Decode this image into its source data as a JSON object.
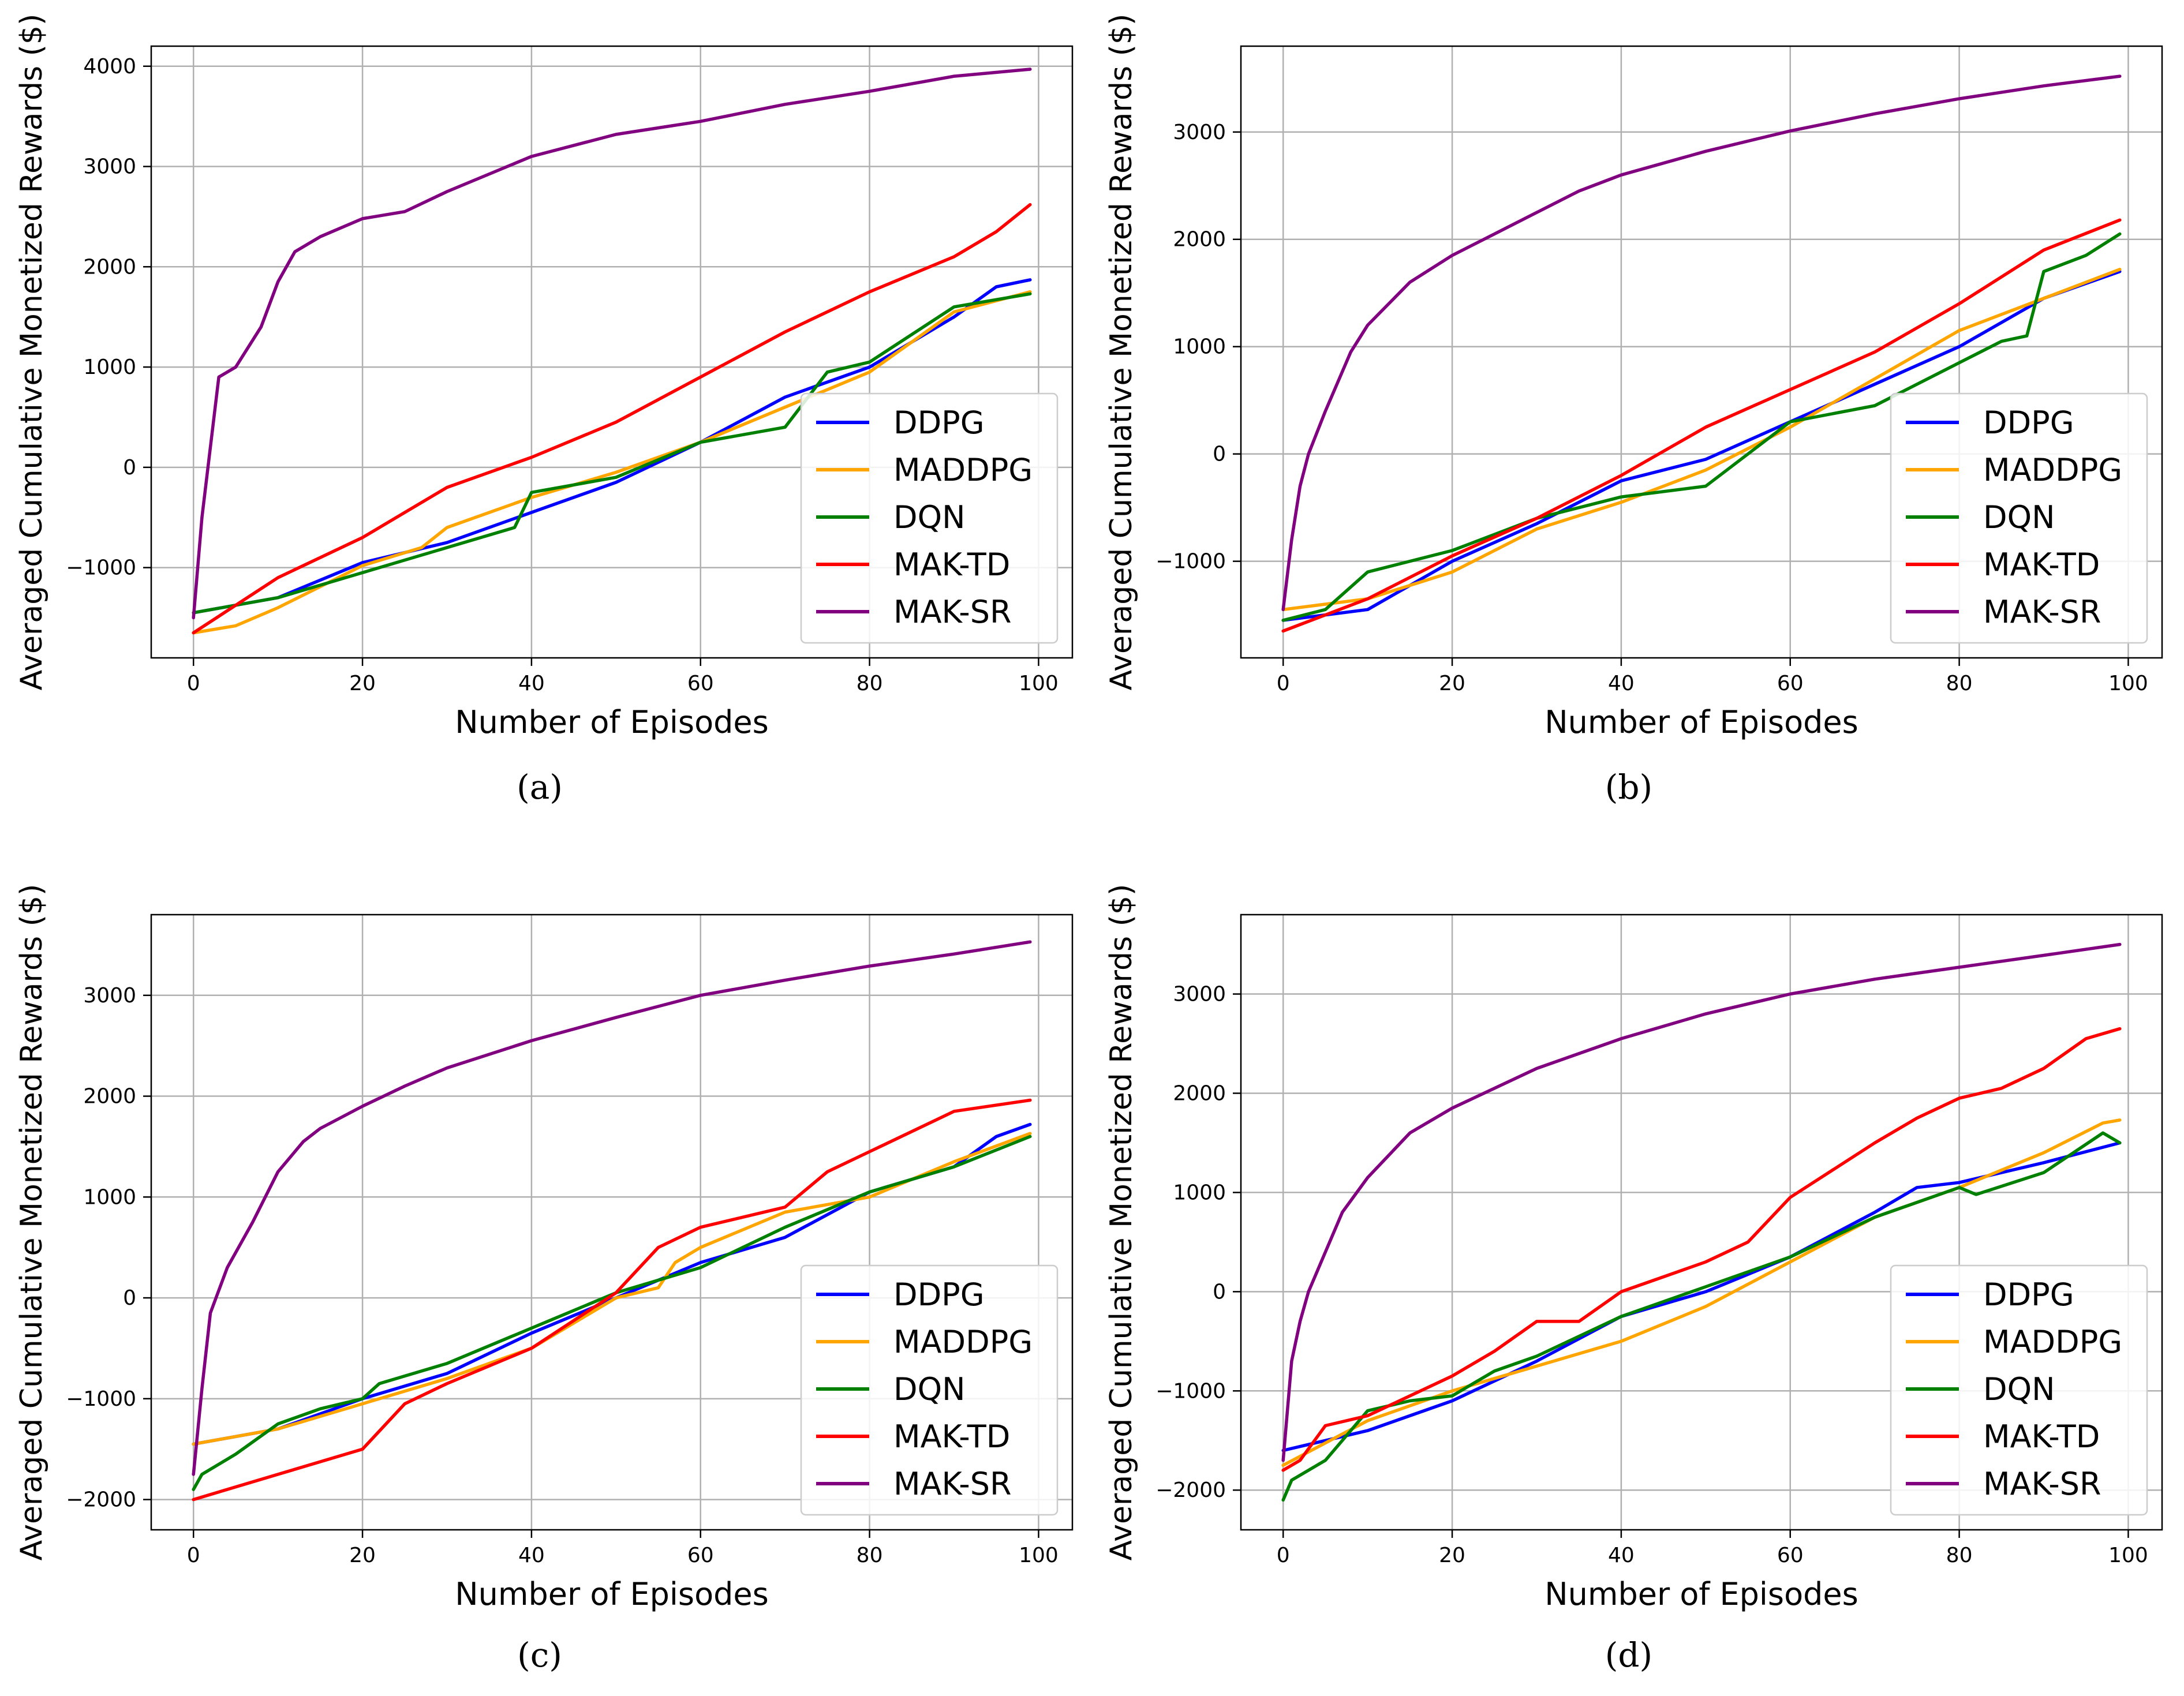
{
  "x_axis_label": "Number of Episodes",
  "y_axis_label": "Averaged Cumulative Monetized Rewards ($)",
  "colors": {
    "DDPG": "#0000ff",
    "MADDPG": "#ffa500",
    "DQN": "#008000",
    "MAK-TD": "#ff0000",
    "MAK-SR": "#800080",
    "grid": "#b0b0b0"
  },
  "chart_data": [
    {
      "type": "line",
      "id": "a",
      "caption": "(a)",
      "xlabel": "Number of Episodes",
      "ylabel": "Averaged Cumulative Monetized Rewards ($)",
      "xlim": [
        -5,
        104
      ],
      "ylim": [
        -1900,
        4200
      ],
      "xticks": [
        0,
        20,
        40,
        60,
        80,
        100
      ],
      "yticks": [
        -1000,
        0,
        1000,
        2000,
        3000,
        4000
      ],
      "grid": true,
      "legend": "bottom-right",
      "series": [
        {
          "name": "DDPG",
          "x": [
            0,
            10,
            20,
            30,
            40,
            50,
            60,
            70,
            80,
            90,
            95,
            99
          ],
          "y": [
            -1450,
            -1300,
            -950,
            -750,
            -450,
            -150,
            250,
            700,
            1000,
            1500,
            1800,
            1870
          ]
        },
        {
          "name": "MADDPG",
          "x": [
            0,
            5,
            10,
            20,
            27,
            30,
            40,
            50,
            60,
            70,
            80,
            90,
            99
          ],
          "y": [
            -1650,
            -1580,
            -1400,
            -980,
            -800,
            -600,
            -300,
            -50,
            250,
            600,
            950,
            1550,
            1750
          ]
        },
        {
          "name": "DQN",
          "x": [
            0,
            10,
            18,
            30,
            38,
            40,
            50,
            60,
            70,
            75,
            80,
            90,
            99
          ],
          "y": [
            -1450,
            -1300,
            -1100,
            -800,
            -600,
            -250,
            -100,
            250,
            400,
            950,
            1050,
            1600,
            1730
          ]
        },
        {
          "name": "MAK-TD",
          "x": [
            0,
            10,
            20,
            30,
            40,
            50,
            60,
            70,
            80,
            90,
            95,
            99
          ],
          "y": [
            -1650,
            -1100,
            -700,
            -200,
            100,
            450,
            900,
            1350,
            1750,
            2100,
            2350,
            2620
          ]
        },
        {
          "name": "MAK-SR",
          "x": [
            0,
            1,
            3,
            5,
            8,
            10,
            12,
            15,
            20,
            25,
            30,
            40,
            50,
            60,
            70,
            80,
            90,
            99
          ],
          "y": [
            -1500,
            -500,
            900,
            1000,
            1400,
            1850,
            2150,
            2300,
            2480,
            2550,
            2750,
            3100,
            3320,
            3450,
            3620,
            3750,
            3900,
            3970
          ]
        }
      ]
    },
    {
      "type": "line",
      "id": "b",
      "caption": "(b)",
      "xlabel": "Number of Episodes",
      "ylabel": "Averaged Cumulative Monetized Rewards ($)",
      "xlim": [
        -5,
        104
      ],
      "ylim": [
        -1900,
        3800
      ],
      "xticks": [
        0,
        20,
        40,
        60,
        80,
        100
      ],
      "yticks": [
        -1000,
        0,
        1000,
        2000,
        3000
      ],
      "grid": true,
      "legend": "bottom-right",
      "series": [
        {
          "name": "DDPG",
          "x": [
            0,
            10,
            20,
            30,
            40,
            50,
            60,
            70,
            80,
            90,
            99
          ],
          "y": [
            -1550,
            -1450,
            -1000,
            -650,
            -250,
            -50,
            300,
            650,
            1000,
            1450,
            1700
          ]
        },
        {
          "name": "MADDPG",
          "x": [
            0,
            10,
            20,
            30,
            40,
            50,
            60,
            70,
            80,
            90,
            99
          ],
          "y": [
            -1450,
            -1350,
            -1100,
            -700,
            -450,
            -150,
            250,
            700,
            1150,
            1450,
            1720
          ]
        },
        {
          "name": "DQN",
          "x": [
            0,
            5,
            10,
            20,
            30,
            40,
            50,
            60,
            70,
            80,
            85,
            88,
            90,
            95,
            99
          ],
          "y": [
            -1550,
            -1450,
            -1100,
            -900,
            -600,
            -400,
            -300,
            300,
            450,
            850,
            1050,
            1100,
            1700,
            1850,
            2050
          ]
        },
        {
          "name": "MAK-TD",
          "x": [
            0,
            10,
            20,
            30,
            40,
            50,
            60,
            70,
            80,
            90,
            99
          ],
          "y": [
            -1650,
            -1350,
            -950,
            -600,
            -200,
            250,
            600,
            950,
            1400,
            1900,
            2180
          ]
        },
        {
          "name": "MAK-SR",
          "x": [
            0,
            1,
            2,
            3,
            5,
            8,
            10,
            15,
            20,
            25,
            30,
            35,
            40,
            50,
            60,
            70,
            80,
            90,
            99
          ],
          "y": [
            -1450,
            -800,
            -300,
            0,
            400,
            950,
            1200,
            1600,
            1850,
            2050,
            2250,
            2450,
            2600,
            2820,
            3010,
            3170,
            3310,
            3430,
            3520
          ]
        }
      ]
    },
    {
      "type": "line",
      "id": "c",
      "caption": "(c)",
      "xlabel": "Number of Episodes",
      "ylabel": "Averaged Cumulative Monetized Rewards ($)",
      "xlim": [
        -5,
        104
      ],
      "ylim": [
        -2300,
        3800
      ],
      "xticks": [
        0,
        20,
        40,
        60,
        80,
        100
      ],
      "yticks": [
        -2000,
        -1000,
        0,
        1000,
        2000,
        3000
      ],
      "grid": true,
      "legend": "bottom-right",
      "series": [
        {
          "name": "DDPG",
          "x": [
            0,
            10,
            20,
            30,
            40,
            50,
            60,
            70,
            80,
            90,
            95,
            99
          ],
          "y": [
            -1450,
            -1300,
            -1000,
            -750,
            -350,
            0,
            350,
            600,
            1050,
            1300,
            1600,
            1720
          ]
        },
        {
          "name": "MADDPG",
          "x": [
            0,
            10,
            20,
            30,
            40,
            50,
            55,
            57,
            60,
            70,
            80,
            90,
            99
          ],
          "y": [
            -1450,
            -1300,
            -1050,
            -800,
            -500,
            0,
            100,
            350,
            500,
            850,
            1000,
            1350,
            1630
          ]
        },
        {
          "name": "DQN",
          "x": [
            0,
            1,
            5,
            10,
            15,
            20,
            22,
            30,
            40,
            50,
            60,
            70,
            80,
            90,
            99
          ],
          "y": [
            -1900,
            -1750,
            -1550,
            -1250,
            -1100,
            -1000,
            -850,
            -650,
            -300,
            50,
            300,
            700,
            1050,
            1300,
            1600
          ]
        },
        {
          "name": "MAK-TD",
          "x": [
            0,
            10,
            20,
            25,
            30,
            40,
            50,
            55,
            60,
            70,
            75,
            80,
            90,
            99
          ],
          "y": [
            -2000,
            -1750,
            -1500,
            -1050,
            -850,
            -500,
            50,
            500,
            700,
            900,
            1250,
            1450,
            1850,
            1960
          ]
        },
        {
          "name": "MAK-SR",
          "x": [
            0,
            1,
            2,
            4,
            7,
            10,
            13,
            15,
            20,
            25,
            30,
            40,
            50,
            60,
            70,
            80,
            90,
            99
          ],
          "y": [
            -1750,
            -900,
            -150,
            300,
            750,
            1250,
            1550,
            1680,
            1900,
            2100,
            2280,
            2550,
            2780,
            3000,
            3150,
            3290,
            3410,
            3530
          ]
        }
      ]
    },
    {
      "type": "line",
      "id": "d",
      "caption": "(d)",
      "xlabel": "Number of Episodes",
      "ylabel": "Averaged Cumulative Monetized Rewards ($)",
      "xlim": [
        -5,
        104
      ],
      "ylim": [
        -2400,
        3800
      ],
      "xticks": [
        0,
        20,
        40,
        60,
        80,
        100
      ],
      "yticks": [
        -2000,
        -1000,
        0,
        1000,
        2000,
        3000
      ],
      "grid": true,
      "legend": "bottom-right",
      "series": [
        {
          "name": "DDPG",
          "x": [
            0,
            10,
            20,
            30,
            40,
            50,
            60,
            70,
            75,
            80,
            90,
            99
          ],
          "y": [
            -1600,
            -1400,
            -1100,
            -700,
            -250,
            0,
            350,
            800,
            1050,
            1100,
            1300,
            1500
          ]
        },
        {
          "name": "MADDPG",
          "x": [
            0,
            10,
            20,
            30,
            40,
            50,
            60,
            70,
            80,
            90,
            97,
            99
          ],
          "y": [
            -1750,
            -1300,
            -1000,
            -750,
            -500,
            -150,
            300,
            750,
            1050,
            1400,
            1700,
            1730
          ]
        },
        {
          "name": "DQN",
          "x": [
            0,
            1,
            5,
            10,
            15,
            20,
            25,
            30,
            40,
            50,
            60,
            70,
            80,
            82,
            90,
            97,
            99
          ],
          "y": [
            -2100,
            -1900,
            -1700,
            -1200,
            -1100,
            -1050,
            -800,
            -650,
            -250,
            50,
            350,
            750,
            1050,
            980,
            1200,
            1600,
            1500
          ]
        },
        {
          "name": "MAK-TD",
          "x": [
            0,
            2,
            5,
            10,
            20,
            25,
            30,
            35,
            40,
            45,
            50,
            55,
            60,
            70,
            75,
            80,
            85,
            90,
            95,
            99
          ],
          "y": [
            -1800,
            -1700,
            -1350,
            -1250,
            -850,
            -600,
            -300,
            -300,
            0,
            150,
            300,
            500,
            950,
            1500,
            1750,
            1950,
            2050,
            2250,
            2550,
            2650
          ]
        },
        {
          "name": "MAK-SR",
          "x": [
            0,
            1,
            2,
            3,
            5,
            7,
            10,
            15,
            20,
            25,
            30,
            40,
            50,
            60,
            70,
            80,
            90,
            99
          ],
          "y": [
            -1700,
            -700,
            -300,
            0,
            400,
            800,
            1150,
            1600,
            1850,
            2050,
            2250,
            2550,
            2800,
            3000,
            3150,
            3270,
            3390,
            3500
          ]
        }
      ]
    }
  ]
}
